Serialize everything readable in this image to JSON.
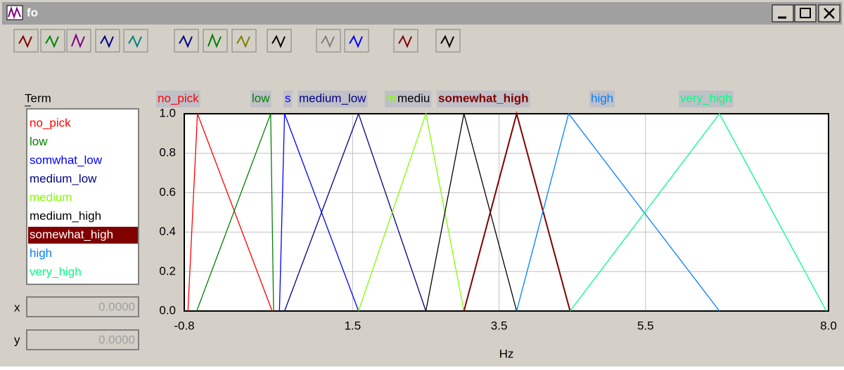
{
  "window": {
    "title": "fo"
  },
  "term_label": "Term",
  "terms": [
    "no_pick",
    "low",
    "somwhat_low",
    "medium_low",
    "medium",
    "medium_high",
    "somewhat_high",
    "high",
    "very_high"
  ],
  "selected_term": 6,
  "x_field": {
    "label": "x",
    "value": "0.0000"
  },
  "y_field": {
    "label": "y",
    "value": "0.0000"
  },
  "chart_data": {
    "type": "line",
    "xlabel": "Hz",
    "xlim": [
      -0.8,
      8.0
    ],
    "ylim": [
      0,
      1
    ],
    "xticks": [
      -0.8,
      1.5,
      3.5,
      5.5,
      {
        "value": 8,
        "label": "8.0"
      }
    ],
    "yticks": [
      {
        "value": 0,
        "label": "0.0"
      },
      0.2,
      0.4,
      0.6,
      0.8,
      {
        "value": 1,
        "label": "1.0"
      }
    ],
    "grid": true,
    "curve_labels": [
      "no_pick",
      "low",
      "s",
      "medium_low",
      "m",
      "mediu",
      "somewhat_high",
      "high",
      "very_high"
    ],
    "series": [
      {
        "name": "no_pick",
        "color": "#ff0000",
        "x": [
          -0.75,
          -0.62,
          0.4
        ],
        "values": [
          0,
          1,
          0
        ]
      },
      {
        "name": "low",
        "color": "#008000",
        "x": [
          -0.63,
          0.38,
          0.42
        ],
        "values": [
          0,
          1,
          0
        ]
      },
      {
        "name": "somwhat_low",
        "color": "#0000ff",
        "x": [
          0.5,
          0.57,
          1.58
        ],
        "values": [
          0,
          1,
          0
        ]
      },
      {
        "name": "medium_low",
        "color": "#000080",
        "x": [
          0.57,
          1.58,
          2.5
        ],
        "values": [
          0,
          1,
          0
        ]
      },
      {
        "name": "medium",
        "color": "#80ff00",
        "x": [
          1.58,
          2.5,
          3.02
        ],
        "values": [
          0,
          1,
          0
        ]
      },
      {
        "name": "medium_high",
        "color": "#000000",
        "x": [
          2.5,
          3.02,
          3.74
        ],
        "values": [
          0,
          1,
          0
        ]
      },
      {
        "name": "somewhat_high",
        "color": "#800000",
        "x": [
          3.02,
          3.74,
          4.47
        ],
        "values": [
          0,
          1,
          0
        ]
      },
      {
        "name": "high",
        "color": "#0080ff",
        "x": [
          3.74,
          4.45,
          6.51
        ],
        "values": [
          0,
          1,
          0
        ]
      },
      {
        "name": "very_high",
        "color": "#00ff80",
        "x": [
          4.47,
          6.51,
          7.97
        ],
        "values": [
          0,
          1,
          0
        ]
      }
    ]
  }
}
